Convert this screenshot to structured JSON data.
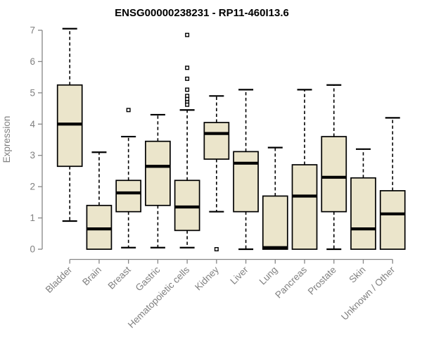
{
  "chart_data": {
    "type": "boxplot",
    "title": "ENSG00000238231 - RP11-460I13.6",
    "xlabel": "",
    "ylabel": "Expression",
    "ylim": [
      0,
      7.2
    ],
    "yticks": [
      0,
      1,
      2,
      3,
      4,
      5,
      6,
      7
    ],
    "grid": false,
    "legend": "none",
    "categories": [
      "Bladder",
      "Brain",
      "Breast",
      "Gastric",
      "Hematopoietic cells",
      "Kidney",
      "Liver",
      "Lung",
      "Pancreas",
      "Prostate",
      "Skin",
      "Unknown / Other"
    ],
    "boxes": [
      {
        "label": "Bladder",
        "whisker_low": 0.9,
        "q1": 2.65,
        "median": 4.0,
        "q3": 5.25,
        "whisker_high": 7.05,
        "outliers": []
      },
      {
        "label": "Brain",
        "whisker_low": 0.0,
        "q1": 0.0,
        "median": 0.65,
        "q3": 1.4,
        "whisker_high": 3.1,
        "outliers": []
      },
      {
        "label": "Breast",
        "whisker_low": 0.05,
        "q1": 1.2,
        "median": 1.8,
        "q3": 2.2,
        "whisker_high": 3.6,
        "outliers": [
          4.45
        ]
      },
      {
        "label": "Gastric",
        "whisker_low": 0.05,
        "q1": 1.4,
        "median": 2.65,
        "q3": 3.45,
        "whisker_high": 4.3,
        "outliers": []
      },
      {
        "label": "Hematopoietic cells",
        "whisker_low": 0.05,
        "q1": 0.6,
        "median": 1.35,
        "q3": 2.2,
        "whisker_high": 4.45,
        "outliers": [
          6.85,
          5.8,
          5.45,
          5.1,
          4.9,
          4.8,
          4.7,
          4.62
        ]
      },
      {
        "label": "Kidney",
        "whisker_low": 1.2,
        "q1": 2.88,
        "median": 3.7,
        "q3": 4.05,
        "whisker_high": 4.9,
        "outliers": [
          0.0
        ]
      },
      {
        "label": "Liver",
        "whisker_low": 0.0,
        "q1": 1.2,
        "median": 2.75,
        "q3": 3.12,
        "whisker_high": 5.1,
        "outliers": []
      },
      {
        "label": "Lung",
        "whisker_low": 0.0,
        "q1": 0.0,
        "median": 0.05,
        "q3": 1.7,
        "whisker_high": 3.25,
        "outliers": []
      },
      {
        "label": "Pancreas",
        "whisker_low": 0.0,
        "q1": 0.0,
        "median": 1.7,
        "q3": 2.7,
        "whisker_high": 5.1,
        "outliers": []
      },
      {
        "label": "Prostate",
        "whisker_low": 0.0,
        "q1": 1.2,
        "median": 2.3,
        "q3": 3.6,
        "whisker_high": 5.25,
        "outliers": []
      },
      {
        "label": "Skin",
        "whisker_low": 0.0,
        "q1": 0.0,
        "median": 0.65,
        "q3": 2.28,
        "whisker_high": 3.2,
        "outliers": []
      },
      {
        "label": "Unknown / Other",
        "whisker_low": 0.0,
        "q1": 0.0,
        "median": 1.13,
        "q3": 1.87,
        "whisker_high": 4.2,
        "outliers": []
      }
    ],
    "colors": {
      "box_fill": "#EBE5CB",
      "box_stroke": "#000000",
      "median_color": "#000000",
      "whisker_color": "#000000",
      "outlier_stroke": "#000000",
      "outlier_fill": "#ffffff",
      "axis_color": "#868686",
      "tick_label_color": "#808080",
      "title_color": "#000000",
      "background": "#ffffff"
    }
  }
}
